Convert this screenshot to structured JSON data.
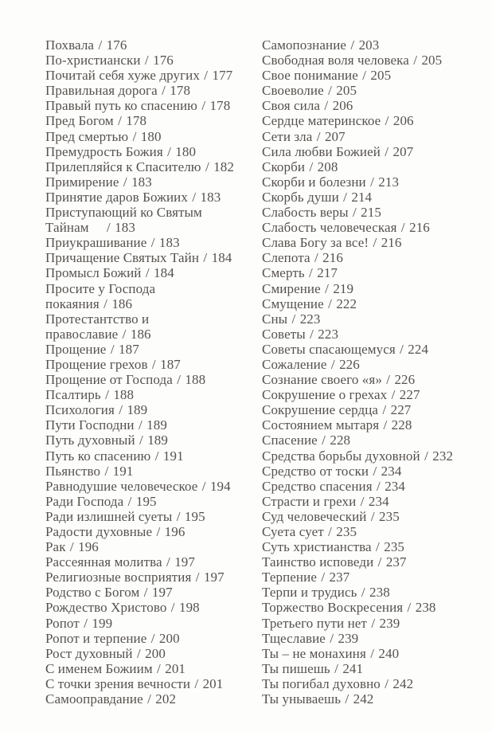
{
  "page": {
    "background_color": "#fdfdfc",
    "text_color": "#56524d"
  },
  "index": {
    "separator": "/",
    "columns": [
      {
        "lines": [
          {
            "title": "Похвала",
            "page": "176"
          },
          {
            "title": "По-христиански",
            "page": "176"
          },
          {
            "title": "Почитай себя хуже других",
            "page": "177"
          },
          {
            "title": "Правильная дорога",
            "page": "178"
          },
          {
            "title": "Правый путь ко спасению",
            "page": "178"
          },
          {
            "title": "Пред Богом",
            "page": "178"
          },
          {
            "title": "Пред смертью",
            "page": "180"
          },
          {
            "title": "Премудрость Божия",
            "page": "180"
          },
          {
            "title": "Прилепляйся к Спасителю",
            "page": "182"
          },
          {
            "title": "Примирение",
            "page": "183"
          },
          {
            "title": "Принятие даров Божиих",
            "page": "183"
          },
          {
            "title": "Приступающий ко Святым",
            "page": null
          },
          {
            "title": "Тайнам",
            "page": "183",
            "wide_gap": true
          },
          {
            "title": "Приукрашивание",
            "page": "183"
          },
          {
            "title": "Причащение Святых Тайн",
            "page": "184"
          },
          {
            "title": "Промысл Божий",
            "page": "184"
          },
          {
            "title": "Просите у Господа",
            "page": null
          },
          {
            "title": "покаяния",
            "page": "186"
          },
          {
            "title": "Протестантство и",
            "page": null
          },
          {
            "title": "православие",
            "page": "186"
          },
          {
            "title": "Прощение",
            "page": "187"
          },
          {
            "title": "Прощение грехов",
            "page": "187"
          },
          {
            "title": "Прощение от Господа",
            "page": "188"
          },
          {
            "title": "Псалтирь",
            "page": "188"
          },
          {
            "title": "Психология",
            "page": "189"
          },
          {
            "title": "Пути Господни",
            "page": "189"
          },
          {
            "title": "Путь духовный",
            "page": "189"
          },
          {
            "title": "Путь ко спасению",
            "page": "191"
          },
          {
            "title": "Пьянство",
            "page": "191"
          },
          {
            "title": "Равнодушие человеческое",
            "page": "194"
          },
          {
            "title": "Ради Господа",
            "page": "195"
          },
          {
            "title": "Ради излишней суеты",
            "page": "195"
          },
          {
            "title": "Радости духовные",
            "page": "196"
          },
          {
            "title": "Рак",
            "page": "196"
          },
          {
            "title": "Рассеянная молитва",
            "page": "197"
          },
          {
            "title": "Религиозные восприятия",
            "page": "197"
          },
          {
            "title": "Родство с Богом",
            "page": "197"
          },
          {
            "title": "Рождество Христово",
            "page": "198"
          },
          {
            "title": "Ропот",
            "page": "199"
          },
          {
            "title": "Ропот и терпение",
            "page": "200"
          },
          {
            "title": "Рост духовный",
            "page": "200"
          },
          {
            "title": "С именем Божиим",
            "page": "201"
          },
          {
            "title": "С точки зрения вечности",
            "page": "201"
          },
          {
            "title": "Самооправдание",
            "page": "202"
          }
        ]
      },
      {
        "lines": [
          {
            "title": "Самопознание",
            "page": "203"
          },
          {
            "title": "Свободная воля человека",
            "page": "205"
          },
          {
            "title": "Свое понимание",
            "page": "205"
          },
          {
            "title": "Своеволие",
            "page": "205"
          },
          {
            "title": "Своя сила",
            "page": "206"
          },
          {
            "title": "Сердце материнское",
            "page": "206"
          },
          {
            "title": "Сети зла",
            "page": "207"
          },
          {
            "title": "Сила любви Божией",
            "page": "207"
          },
          {
            "title": "Скорби",
            "page": "208"
          },
          {
            "title": "Скорби и болезни",
            "page": "213"
          },
          {
            "title": "Скорбь души",
            "page": "214"
          },
          {
            "title": "Слабость веры",
            "page": "215"
          },
          {
            "title": "Слабость человеческая",
            "page": "216"
          },
          {
            "title": "Слава Богу за все!",
            "page": "216"
          },
          {
            "title": "Слепота",
            "page": "216"
          },
          {
            "title": "Смерть",
            "page": "217"
          },
          {
            "title": "Смирение",
            "page": "219"
          },
          {
            "title": "Смущение",
            "page": "222"
          },
          {
            "title": "Сны",
            "page": "223"
          },
          {
            "title": "Советы",
            "page": "223"
          },
          {
            "title": "Советы спасающемуся",
            "page": "224"
          },
          {
            "title": "Сожаление",
            "page": "226"
          },
          {
            "title": "Сознание своего «я»",
            "page": "226"
          },
          {
            "title": "Сокрушение о грехах",
            "page": "227"
          },
          {
            "title": "Сокрушение сердца",
            "page": "227"
          },
          {
            "title": "Состоянием мытаря",
            "page": "228"
          },
          {
            "title": "Спасение",
            "page": "228"
          },
          {
            "title": "Средства борьбы духовной",
            "page": "232"
          },
          {
            "title": "Средство от тоски",
            "page": "234"
          },
          {
            "title": "Средство спасения",
            "page": "234"
          },
          {
            "title": "Страсти и грехи",
            "page": "234"
          },
          {
            "title": "Суд человеческий",
            "page": "235"
          },
          {
            "title": "Суета сует",
            "page": "235"
          },
          {
            "title": "Суть христианства",
            "page": "235"
          },
          {
            "title": "Таинство исповеди",
            "page": "237"
          },
          {
            "title": "Терпение",
            "page": "237"
          },
          {
            "title": "Терпи и трудись",
            "page": "238"
          },
          {
            "title": "Торжество Воскресения",
            "page": "238"
          },
          {
            "title": "Третьего пути нет",
            "page": "239"
          },
          {
            "title": "Тщеславие",
            "page": "239"
          },
          {
            "title": "Ты – не монахиня",
            "page": "240"
          },
          {
            "title": "Ты пишешь",
            "page": "241"
          },
          {
            "title": "Ты погибал духовно",
            "page": "242"
          },
          {
            "title": "Ты унываешь",
            "page": "242"
          }
        ]
      }
    ]
  }
}
